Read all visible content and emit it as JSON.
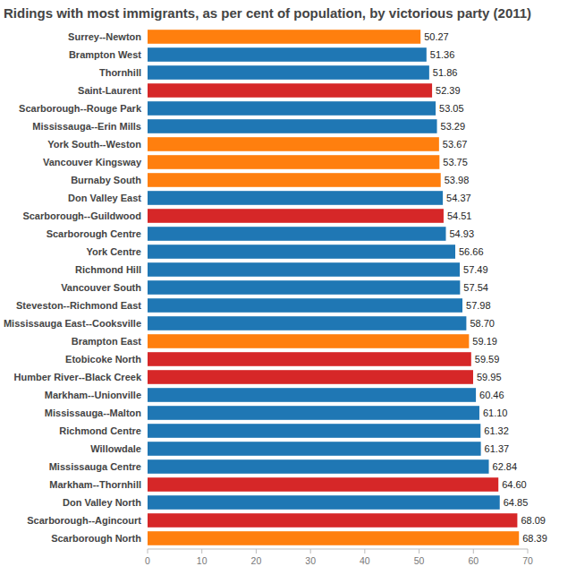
{
  "chart_data": {
    "type": "bar",
    "orientation": "horizontal",
    "title": "Ridings with most immigrants, as per cent of population, by victorious party (2011)",
    "categories": [
      "Surrey--Newton",
      "Brampton West",
      "Thornhill",
      "Saint-Laurent",
      "Scarborough--Rouge Park",
      "Mississauga--Erin Mills",
      "York South--Weston",
      "Vancouver Kingsway",
      "Burnaby South",
      "Don Valley East",
      "Scarborough--Guildwood",
      "Scarborough Centre",
      "York Centre",
      "Richmond Hill",
      "Vancouver South",
      "Steveston--Richmond East",
      "Mississauga East--Cooksville",
      "Brampton East",
      "Etobicoke North",
      "Humber River--Black Creek",
      "Markham--Unionville",
      "Mississauga--Malton",
      "Richmond Centre",
      "Willowdale",
      "Mississauga Centre",
      "Markham--Thornhill",
      "Don Valley North",
      "Scarborough--Agincourt",
      "Scarborough North"
    ],
    "values": [
      50.27,
      51.36,
      51.86,
      52.39,
      53.05,
      53.29,
      53.67,
      53.75,
      53.98,
      54.37,
      54.51,
      54.93,
      56.66,
      57.49,
      57.54,
      57.98,
      58.7,
      59.19,
      59.59,
      59.95,
      60.46,
      61.1,
      61.32,
      61.37,
      62.84,
      64.6,
      64.85,
      68.09,
      68.39
    ],
    "value_labels": [
      "50.27",
      "51.36",
      "51.86",
      "52.39",
      "53.05",
      "53.29",
      "53.67",
      "53.75",
      "53.98",
      "54.37",
      "54.51",
      "54.93",
      "56.66",
      "57.49",
      "57.54",
      "57.98",
      "58.70",
      "59.19",
      "59.59",
      "59.95",
      "60.46",
      "61.10",
      "61.32",
      "61.37",
      "62.84",
      "64.60",
      "64.85",
      "68.09",
      "68.39"
    ],
    "colors": [
      "#ff7f0e",
      "#1f77b4",
      "#1f77b4",
      "#d62728",
      "#1f77b4",
      "#1f77b4",
      "#ff7f0e",
      "#ff7f0e",
      "#ff7f0e",
      "#1f77b4",
      "#d62728",
      "#1f77b4",
      "#1f77b4",
      "#1f77b4",
      "#1f77b4",
      "#1f77b4",
      "#1f77b4",
      "#ff7f0e",
      "#d62728",
      "#d62728",
      "#1f77b4",
      "#1f77b4",
      "#1f77b4",
      "#1f77b4",
      "#1f77b4",
      "#d62728",
      "#1f77b4",
      "#d62728",
      "#ff7f0e"
    ],
    "xlim": [
      0,
      70
    ],
    "xticks": [
      0,
      10,
      20,
      30,
      40,
      50,
      60,
      70
    ],
    "grid": false,
    "data_labels": true
  }
}
